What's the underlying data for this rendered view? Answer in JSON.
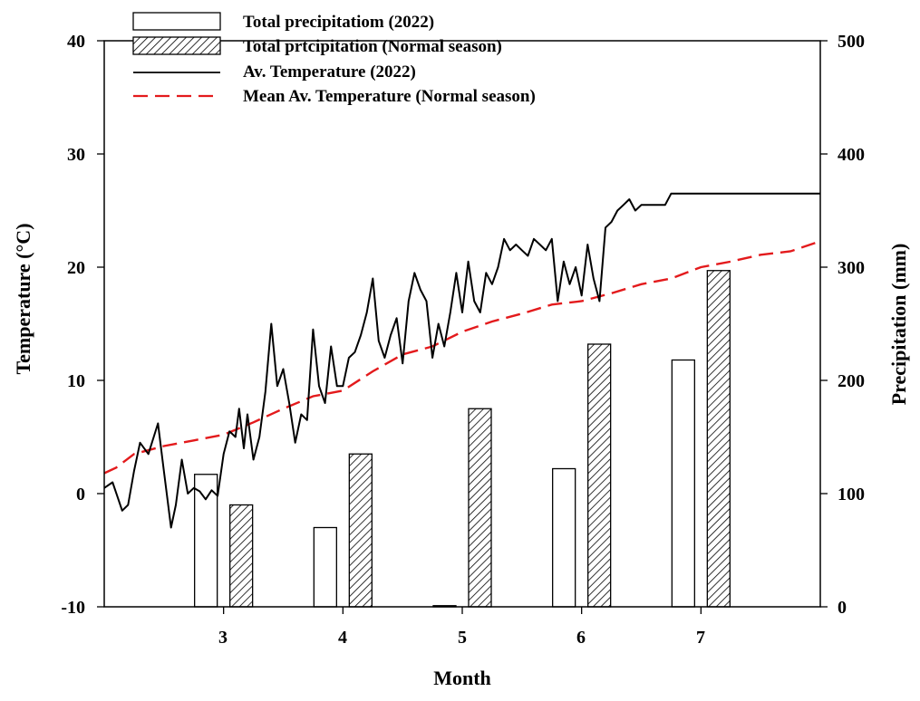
{
  "chart_data": {
    "type": "bar+line",
    "title": "",
    "xlabel": "Month",
    "ylabel_left": "Temperature (°C)",
    "ylabel_right": "Precipitation (mm)",
    "x_range": [
      2,
      8
    ],
    "x_ticks": [
      "3",
      "4",
      "5",
      "6",
      "7"
    ],
    "y_left_range": [
      -10,
      40
    ],
    "y_left_ticks": [
      "-10",
      "0",
      "10",
      "20",
      "30",
      "40"
    ],
    "y_right_range": [
      0,
      500
    ],
    "y_right_ticks": [
      "0",
      "100",
      "200",
      "300",
      "400",
      "500"
    ],
    "legend_position": "top-left",
    "grid": false,
    "colors": {
      "mean_temp": "#e31a1c",
      "line": "#000000",
      "bar_2022": "#ffffff",
      "hatch": "#000000"
    },
    "categories": [
      "3",
      "4",
      "5",
      "6",
      "7"
    ],
    "series": [
      {
        "name": "Total precipitatiom (2022)",
        "kind": "bar",
        "axis": "right",
        "values": [
          117,
          70,
          1,
          122,
          218
        ]
      },
      {
        "name": "Total prtcipitation (Normal season)",
        "kind": "bar",
        "axis": "right",
        "values": [
          90,
          135,
          175,
          232,
          297
        ]
      },
      {
        "name": "Av. Temperature (2022)",
        "kind": "line",
        "axis": "left",
        "x": [
          2.0,
          2.07,
          2.15,
          2.2,
          2.25,
          2.3,
          2.37,
          2.45,
          2.5,
          2.56,
          2.6,
          2.65,
          2.7,
          2.75,
          2.8,
          2.85,
          2.9,
          2.95,
          3.0,
          3.05,
          3.1,
          3.13,
          3.17,
          3.2,
          3.25,
          3.3,
          3.35,
          3.4,
          3.45,
          3.5,
          3.55,
          3.6,
          3.65,
          3.7,
          3.75,
          3.8,
          3.85,
          3.9,
          3.95,
          4.0,
          4.05,
          4.1,
          4.15,
          4.2,
          4.25,
          4.3,
          4.35,
          4.4,
          4.45,
          4.5,
          4.55,
          4.6,
          4.65,
          4.7,
          4.75,
          4.8,
          4.85,
          4.9,
          4.95,
          5.0,
          5.05,
          5.1,
          5.15,
          5.2,
          5.25,
          5.3,
          5.35,
          5.4,
          5.45,
          5.5,
          5.55,
          5.6,
          5.65,
          5.7,
          5.75,
          5.8,
          5.85,
          5.9,
          5.95,
          6.0,
          6.05,
          6.1,
          6.15,
          6.2,
          6.25,
          6.3,
          6.35,
          6.4,
          6.45,
          6.5,
          6.55,
          6.6,
          6.65,
          6.7,
          6.75,
          6.8,
          6.85,
          6.9,
          6.95,
          7.0,
          7.05,
          7.1,
          7.15,
          7.2,
          7.25,
          7.3,
          7.35,
          7.4,
          7.45,
          7.5,
          7.55,
          7.6,
          7.65,
          7.7,
          7.75,
          7.8,
          7.85,
          7.9,
          7.95,
          8.0
        ],
        "values": [
          0.5,
          1.0,
          -1.5,
          -1.0,
          2.0,
          4.5,
          3.5,
          6.2,
          2.0,
          -3.0,
          -1.0,
          3.0,
          0.0,
          0.5,
          0.2,
          -0.5,
          0.3,
          -0.2,
          3.5,
          5.5,
          5.0,
          7.5,
          4.0,
          7.0,
          3.0,
          5.0,
          9.0,
          15.0,
          9.5,
          11.0,
          8.0,
          4.5,
          7.0,
          6.5,
          14.5,
          9.5,
          8.0,
          13.0,
          9.5,
          9.5,
          12.0,
          12.5,
          14.0,
          16.0,
          19.0,
          13.5,
          12.0,
          14.0,
          15.5,
          11.5,
          17.0,
          19.5,
          18.0,
          17.0,
          12.0,
          15.0,
          13.0,
          16.0,
          19.5,
          16.0,
          20.5,
          17.0,
          16.0,
          19.5,
          18.5,
          20.0,
          22.5,
          21.5,
          22.0,
          21.5,
          21.0,
          22.5,
          22.0,
          21.5,
          22.5,
          17.0,
          20.5,
          18.5,
          20.0,
          17.5,
          22.0,
          19.0,
          17.0,
          23.5,
          24.0,
          25.0,
          25.5,
          26.0,
          25.0,
          25.5,
          25.5,
          25.5,
          25.5,
          25.5,
          26.5,
          26.5,
          26.5,
          26.5,
          26.5,
          26.5,
          26.5,
          26.5,
          26.5,
          26.5,
          26.5,
          26.5,
          26.5,
          26.5,
          26.5,
          26.5,
          26.5,
          26.5,
          26.5,
          26.5,
          26.5,
          26.5,
          26.5,
          26.5,
          26.5,
          26.5
        ]
      },
      {
        "name": "Mean Av. Temperature (Normal season)",
        "kind": "line",
        "axis": "left",
        "x": [
          2.0,
          2.1,
          2.25,
          2.5,
          2.75,
          3.0,
          3.25,
          3.5,
          3.75,
          4.0,
          4.25,
          4.5,
          4.75,
          5.0,
          5.25,
          5.5,
          5.75,
          6.0,
          6.25,
          6.5,
          6.75,
          7.0,
          7.25,
          7.5,
          7.75,
          8.0
        ],
        "values": [
          1.8,
          2.3,
          3.5,
          4.2,
          4.7,
          5.2,
          6.3,
          7.5,
          8.6,
          9.1,
          10.8,
          12.3,
          13.0,
          14.3,
          15.2,
          15.9,
          16.7,
          17.0,
          17.7,
          18.5,
          19.0,
          20.0,
          20.5,
          21.1,
          21.4,
          22.3
        ]
      }
    ]
  }
}
